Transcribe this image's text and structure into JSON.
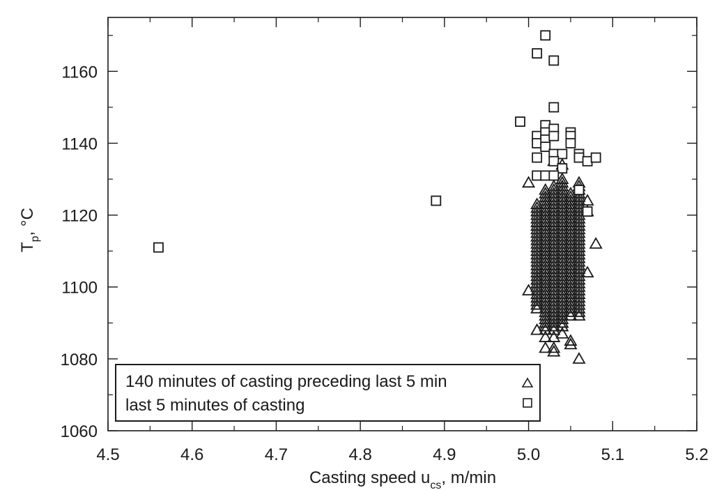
{
  "chart_data": {
    "type": "scatter",
    "title": "",
    "xlabel": "Casting speed u_cs, m/min",
    "xlabel_main": "Casting speed u",
    "xlabel_sub": "cs",
    "xlabel_tail": ", m/min",
    "ylabel": "Tp, °C",
    "ylabel_main": "T",
    "ylabel_sub": "p",
    "ylabel_tail": ", °C",
    "xlim": [
      4.5,
      5.2
    ],
    "ylim": [
      1060,
      1175
    ],
    "xticks": [
      4.5,
      4.6,
      4.7,
      4.8,
      4.9,
      5.0,
      5.1,
      5.2
    ],
    "xtick_labels": [
      "4.5",
      "4.6",
      "4.7",
      "4.8",
      "4.9",
      "5.0",
      "5.1",
      "5.2"
    ],
    "yticks": [
      1060,
      1080,
      1100,
      1120,
      1140,
      1160
    ],
    "ytick_labels": [
      "1060",
      "1080",
      "1100",
      "1120",
      "1140",
      "1160"
    ],
    "grid": false,
    "legend_position": "lower left",
    "series": [
      {
        "name": "140 minutes of casting preceding last 5 min",
        "marker": "triangle",
        "dense_columns": [
          {
            "x": 5.01,
            "y_from": 1094,
            "y_to": 1123
          },
          {
            "x": 5.02,
            "y_from": 1088,
            "y_to": 1127
          },
          {
            "x": 5.03,
            "y_from": 1088,
            "y_to": 1128
          },
          {
            "x": 5.04,
            "y_from": 1089,
            "y_to": 1130
          },
          {
            "x": 5.05,
            "y_from": 1092,
            "y_to": 1126
          },
          {
            "x": 5.06,
            "y_from": 1092,
            "y_to": 1128
          }
        ],
        "points": [
          [
            5.0,
            1129
          ],
          [
            5.0,
            1099
          ],
          [
            5.01,
            1095
          ],
          [
            5.01,
            1102
          ],
          [
            5.01,
            1088
          ],
          [
            5.02,
            1086
          ],
          [
            5.02,
            1083
          ],
          [
            5.03,
            1086
          ],
          [
            5.03,
            1083
          ],
          [
            5.03,
            1082
          ],
          [
            5.03,
            1089
          ],
          [
            5.04,
            1090
          ],
          [
            5.04,
            1087
          ],
          [
            5.05,
            1085
          ],
          [
            5.05,
            1084
          ],
          [
            5.06,
            1080
          ],
          [
            5.07,
            1124
          ],
          [
            5.07,
            1121
          ],
          [
            5.07,
            1104
          ],
          [
            5.08,
            1112
          ],
          [
            5.03,
            1135
          ],
          [
            5.04,
            1134
          ],
          [
            5.06,
            1129
          ]
        ]
      },
      {
        "name": "last 5 minutes of casting",
        "marker": "square",
        "points": [
          [
            4.56,
            1111
          ],
          [
            4.89,
            1124
          ],
          [
            4.99,
            1146
          ],
          [
            5.02,
            1170
          ],
          [
            5.01,
            1165
          ],
          [
            5.03,
            1163
          ],
          [
            5.03,
            1150
          ],
          [
            5.01,
            1142
          ],
          [
            5.01,
            1140
          ],
          [
            5.02,
            1145
          ],
          [
            5.02,
            1143
          ],
          [
            5.02,
            1141
          ],
          [
            5.02,
            1139
          ],
          [
            5.03,
            1144
          ],
          [
            5.03,
            1142
          ],
          [
            5.05,
            1143
          ],
          [
            5.05,
            1142
          ],
          [
            5.05,
            1140
          ],
          [
            5.01,
            1136
          ],
          [
            5.03,
            1137
          ],
          [
            5.04,
            1137
          ],
          [
            5.03,
            1135
          ],
          [
            5.04,
            1133
          ],
          [
            5.06,
            1137
          ],
          [
            5.06,
            1136
          ],
          [
            5.07,
            1135
          ],
          [
            5.08,
            1136
          ],
          [
            5.01,
            1131
          ],
          [
            5.02,
            1131
          ],
          [
            5.03,
            1131
          ],
          [
            5.06,
            1127
          ],
          [
            5.07,
            1121
          ]
        ]
      }
    ]
  },
  "legend": {
    "items": [
      {
        "label": "140 minutes of casting preceding last 5 min",
        "marker": "triangle"
      },
      {
        "label": "last 5 minutes of casting",
        "marker": "square"
      }
    ]
  }
}
